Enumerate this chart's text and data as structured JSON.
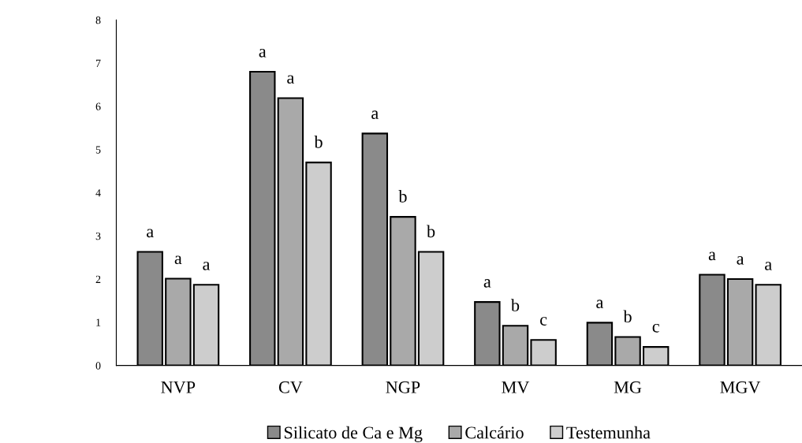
{
  "chart_data": {
    "type": "bar",
    "categories": [
      "NVP",
      "CV",
      "NGP",
      "MV",
      "MG",
      "MGV"
    ],
    "series": [
      {
        "name": "Silicato de Ca e Mg",
        "color": "#8a8a8a",
        "values": [
          2.63,
          6.8,
          5.37,
          1.47,
          0.99,
          2.1
        ],
        "value_labels": [
          "a",
          "a",
          "a",
          "a",
          "a",
          "a"
        ]
      },
      {
        "name": "Calcário",
        "color": "#a9a9a9",
        "values": [
          2.01,
          6.19,
          3.44,
          0.92,
          0.66,
          2.0
        ],
        "value_labels": [
          "a",
          "a",
          "b",
          "b",
          "b",
          "a"
        ]
      },
      {
        "name": "Testemunha",
        "color": "#cdcdcd",
        "values": [
          1.87,
          4.7,
          2.63,
          0.59,
          0.43,
          1.87
        ],
        "value_labels": [
          "a",
          "b",
          "b",
          "c",
          "c",
          "a"
        ]
      }
    ],
    "ylim": [
      0,
      8
    ],
    "yticks": [
      0,
      1,
      2,
      3,
      4,
      5,
      6,
      7,
      8
    ],
    "grid": false,
    "legend": "bottom"
  }
}
